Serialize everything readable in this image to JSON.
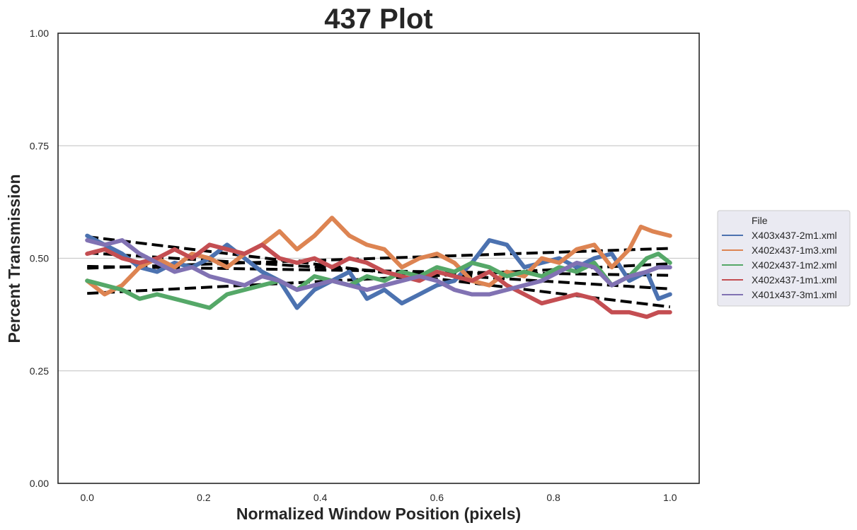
{
  "chart_data": {
    "type": "line",
    "title": "437 Plot",
    "xlabel": "Normalized Window Position (pixels)",
    "ylabel": "Percent Transmission",
    "xlim": [
      -0.05,
      1.05
    ],
    "ylim": [
      0.0,
      1.0
    ],
    "xticks": [
      0.0,
      0.2,
      0.4,
      0.6,
      0.8,
      1.0
    ],
    "xtick_labels": [
      "0.0",
      "0.2",
      "0.4",
      "0.6",
      "0.8",
      "1.0"
    ],
    "yticks": [
      0.0,
      0.25,
      0.5,
      0.75,
      1.0
    ],
    "ytick_labels": [
      "0.00",
      "0.25",
      "0.50",
      "0.75",
      "1.00"
    ],
    "grid": "horizontal",
    "legend": {
      "title": "File",
      "placement": "center-right-outside"
    },
    "series": [
      {
        "name": "X403x437-2m1.xml",
        "color": "#4c72b0",
        "x": [
          0.0,
          0.03,
          0.06,
          0.09,
          0.12,
          0.15,
          0.18,
          0.21,
          0.24,
          0.27,
          0.3,
          0.33,
          0.36,
          0.39,
          0.42,
          0.45,
          0.48,
          0.51,
          0.54,
          0.57,
          0.6,
          0.63,
          0.66,
          0.69,
          0.72,
          0.75,
          0.78,
          0.81,
          0.84,
          0.87,
          0.9,
          0.93,
          0.96,
          0.98,
          1.0
        ],
        "y": [
          0.55,
          0.53,
          0.51,
          0.48,
          0.47,
          0.49,
          0.48,
          0.5,
          0.53,
          0.5,
          0.47,
          0.45,
          0.39,
          0.43,
          0.45,
          0.47,
          0.41,
          0.43,
          0.4,
          0.42,
          0.44,
          0.45,
          0.49,
          0.54,
          0.53,
          0.48,
          0.49,
          0.5,
          0.48,
          0.5,
          0.51,
          0.45,
          0.47,
          0.41,
          0.42
        ]
      },
      {
        "name": "X402x437-1m3.xml",
        "color": "#dd8452",
        "x": [
          0.0,
          0.03,
          0.06,
          0.09,
          0.12,
          0.15,
          0.18,
          0.21,
          0.24,
          0.27,
          0.3,
          0.33,
          0.36,
          0.39,
          0.42,
          0.45,
          0.48,
          0.51,
          0.54,
          0.57,
          0.6,
          0.63,
          0.66,
          0.69,
          0.72,
          0.75,
          0.78,
          0.81,
          0.84,
          0.87,
          0.9,
          0.93,
          0.95,
          0.97,
          1.0
        ],
        "y": [
          0.45,
          0.42,
          0.44,
          0.48,
          0.5,
          0.48,
          0.51,
          0.5,
          0.48,
          0.51,
          0.53,
          0.56,
          0.52,
          0.55,
          0.59,
          0.55,
          0.53,
          0.52,
          0.48,
          0.5,
          0.51,
          0.49,
          0.45,
          0.44,
          0.47,
          0.46,
          0.5,
          0.49,
          0.52,
          0.53,
          0.48,
          0.52,
          0.57,
          0.56,
          0.55
        ]
      },
      {
        "name": "X402x437-1m2.xml",
        "color": "#55a868",
        "x": [
          0.0,
          0.03,
          0.06,
          0.09,
          0.12,
          0.15,
          0.18,
          0.21,
          0.24,
          0.27,
          0.3,
          0.33,
          0.36,
          0.39,
          0.42,
          0.45,
          0.48,
          0.51,
          0.54,
          0.57,
          0.6,
          0.63,
          0.66,
          0.69,
          0.72,
          0.75,
          0.78,
          0.81,
          0.84,
          0.87,
          0.9,
          0.93,
          0.96,
          0.98,
          1.0
        ],
        "y": [
          0.45,
          0.44,
          0.43,
          0.41,
          0.42,
          0.41,
          0.4,
          0.39,
          0.42,
          0.43,
          0.44,
          0.45,
          0.43,
          0.46,
          0.45,
          0.44,
          0.46,
          0.45,
          0.47,
          0.46,
          0.48,
          0.47,
          0.49,
          0.48,
          0.46,
          0.47,
          0.46,
          0.48,
          0.47,
          0.49,
          0.44,
          0.46,
          0.5,
          0.51,
          0.49
        ]
      },
      {
        "name": "X402x437-1m1.xml",
        "color": "#c44e52",
        "x": [
          0.0,
          0.03,
          0.06,
          0.09,
          0.12,
          0.15,
          0.18,
          0.21,
          0.24,
          0.27,
          0.3,
          0.33,
          0.36,
          0.39,
          0.42,
          0.45,
          0.48,
          0.51,
          0.54,
          0.57,
          0.6,
          0.63,
          0.66,
          0.69,
          0.72,
          0.75,
          0.78,
          0.81,
          0.84,
          0.87,
          0.9,
          0.93,
          0.96,
          0.98,
          1.0
        ],
        "y": [
          0.51,
          0.52,
          0.5,
          0.49,
          0.5,
          0.52,
          0.5,
          0.53,
          0.52,
          0.51,
          0.53,
          0.5,
          0.49,
          0.5,
          0.48,
          0.5,
          0.49,
          0.47,
          0.46,
          0.45,
          0.47,
          0.46,
          0.45,
          0.47,
          0.44,
          0.42,
          0.4,
          0.41,
          0.42,
          0.41,
          0.38,
          0.38,
          0.37,
          0.38,
          0.38
        ]
      },
      {
        "name": "X401x437-3m1.xml",
        "color": "#8172b3",
        "x": [
          0.0,
          0.03,
          0.06,
          0.09,
          0.12,
          0.15,
          0.18,
          0.21,
          0.24,
          0.27,
          0.3,
          0.33,
          0.36,
          0.39,
          0.42,
          0.45,
          0.48,
          0.51,
          0.54,
          0.57,
          0.6,
          0.63,
          0.66,
          0.69,
          0.72,
          0.75,
          0.78,
          0.81,
          0.84,
          0.87,
          0.9,
          0.93,
          0.96,
          0.98,
          1.0
        ],
        "y": [
          0.54,
          0.53,
          0.54,
          0.51,
          0.49,
          0.47,
          0.48,
          0.46,
          0.45,
          0.44,
          0.46,
          0.45,
          0.43,
          0.44,
          0.45,
          0.44,
          0.43,
          0.44,
          0.45,
          0.46,
          0.45,
          0.43,
          0.42,
          0.42,
          0.43,
          0.44,
          0.45,
          0.47,
          0.49,
          0.48,
          0.44,
          0.46,
          0.47,
          0.48,
          0.48
        ]
      }
    ],
    "trend_lines": {
      "style": "dashed",
      "color": "#000000",
      "lines": [
        {
          "x": [
            0.0,
            1.0
          ],
          "y": [
            0.548,
            0.392
          ]
        },
        {
          "x": [
            0.0,
            1.0
          ],
          "y": [
            0.478,
            0.522
          ]
        },
        {
          "x": [
            0.0,
            1.0
          ],
          "y": [
            0.422,
            0.488
          ]
        },
        {
          "x": [
            0.0,
            1.0
          ],
          "y": [
            0.512,
            0.432
          ]
        },
        {
          "x": [
            0.0,
            1.0
          ],
          "y": [
            0.482,
            0.462
          ]
        }
      ]
    }
  }
}
